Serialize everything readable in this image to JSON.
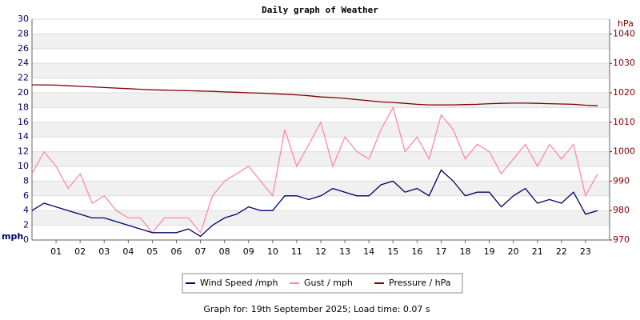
{
  "chart_data": {
    "type": "line",
    "title": "Daily graph of Weather",
    "y_label": "mph",
    "y2_label": "hPa",
    "footer": "Graph for: 19th September 2025; Load time: 0.07 s",
    "x": [
      0,
      0.5,
      1,
      1.5,
      2,
      2.5,
      3,
      3.5,
      4,
      4.5,
      5,
      5.5,
      6,
      6.5,
      7,
      7.5,
      8,
      8.5,
      9,
      9.5,
      10,
      10.5,
      11,
      11.5,
      12,
      12.5,
      13,
      13.5,
      14,
      14.5,
      15,
      15.5,
      16,
      16.5,
      17,
      17.5,
      18,
      18.5,
      19,
      19.5,
      20,
      20.5,
      21,
      21.5,
      22,
      22.5,
      23,
      23.5
    ],
    "xlim": [
      0,
      24
    ],
    "xticks": [
      {
        "value": 1,
        "label": "01"
      },
      {
        "value": 2,
        "label": "02"
      },
      {
        "value": 3,
        "label": "03"
      },
      {
        "value": 4,
        "label": "04"
      },
      {
        "value": 5,
        "label": "05"
      },
      {
        "value": 6,
        "label": "06"
      },
      {
        "value": 7,
        "label": "07"
      },
      {
        "value": 8,
        "label": "08"
      },
      {
        "value": 9,
        "label": "09"
      },
      10,
      11,
      12,
      13,
      14,
      15,
      16,
      17,
      18,
      19,
      20,
      21,
      22,
      23
    ],
    "ylim": [
      0,
      30
    ],
    "yticks": [
      0,
      2,
      4,
      6,
      8,
      10,
      12,
      14,
      16,
      18,
      20,
      22,
      24,
      26,
      28,
      30
    ],
    "y2lim": [
      970,
      1045
    ],
    "y2ticks": [
      970,
      980,
      990,
      1000,
      1010,
      1020,
      1030,
      1040
    ],
    "grid": true,
    "series": [
      {
        "name": "Wind Speed /mph",
        "color": "#000066",
        "values": [
          4,
          5,
          4.5,
          4,
          3.5,
          3,
          3,
          2.5,
          2,
          1.5,
          1,
          1,
          1,
          1.5,
          0.5,
          2,
          3,
          3.5,
          4.5,
          4,
          4,
          6,
          6,
          5.5,
          6,
          7,
          6.5,
          6,
          6,
          7.5,
          8,
          6.5,
          7,
          6,
          9.5,
          8,
          6,
          6.5,
          6.5,
          4.5,
          6,
          7,
          5,
          5.5,
          5,
          6.5,
          3.5,
          4
        ]
      },
      {
        "name": "Gust / mph",
        "color": "#ff88aa",
        "values": [
          9,
          12,
          10,
          7,
          9,
          5,
          6,
          4,
          3,
          3,
          1,
          3,
          3,
          3,
          1,
          6,
          8,
          9,
          10,
          8,
          6,
          15,
          10,
          13,
          16,
          10,
          14,
          12,
          11,
          15,
          18,
          12,
          14,
          11,
          17,
          15,
          11,
          13,
          12,
          9,
          11,
          13,
          10,
          13,
          11,
          13,
          6,
          9
        ]
      },
      {
        "name": "Pressure / hPa",
        "color": "#800000",
        "axis": "y2",
        "values": [
          1022.7,
          1022.7,
          1022.6,
          1022.4,
          1022.2,
          1022,
          1021.8,
          1021.6,
          1021.4,
          1021.2,
          1021,
          1020.9,
          1020.8,
          1020.7,
          1020.6,
          1020.5,
          1020.3,
          1020.2,
          1020,
          1019.9,
          1019.7,
          1019.5,
          1019.3,
          1019,
          1018.6,
          1018.4,
          1018.1,
          1017.7,
          1017.3,
          1016.9,
          1016.7,
          1016.4,
          1016.1,
          1015.9,
          1015.9,
          1015.9,
          1016,
          1016.1,
          1016.3,
          1016.4,
          1016.5,
          1016.5,
          1016.4,
          1016.3,
          1016.2,
          1016.1,
          1015.8,
          1015.6
        ]
      }
    ],
    "legend": "bottom"
  }
}
